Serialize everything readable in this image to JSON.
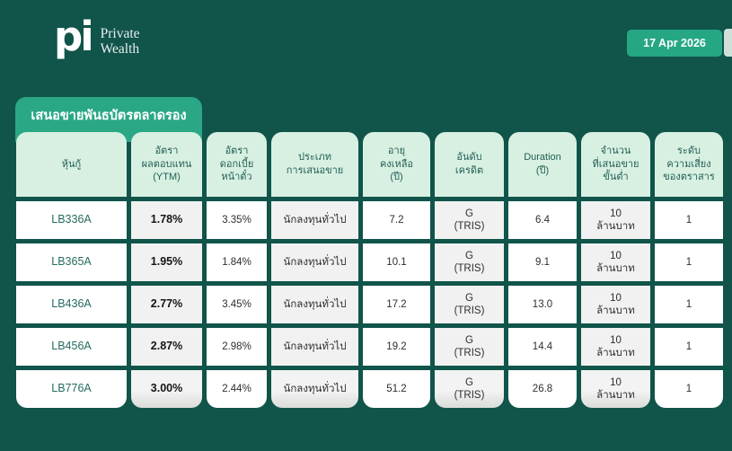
{
  "header": {
    "logo_mark": "pi",
    "logo_line1": "Private",
    "logo_line2": "Wealth",
    "date": "17 Apr 2026"
  },
  "tab_title": "เสนอขายพันธบัตรตลาดรอง",
  "table": {
    "columns": [
      "หุ้นกู้",
      "อัตรา\nผลตอบแทน\n(YTM)",
      "อัตรา\nดอกเบี้ย\nหน้าตั๋ว",
      "ประเภท\nการเสนอขาย",
      "อายุ\nคงเหลือ\n(ปี)",
      "อันดับ\nเครดิต",
      "Duration\n(ปี)",
      "จำนวน\nที่เสนอขาย\nขั้นต่ำ",
      "ระดับ\nความเสี่ยง\nของตราสาร"
    ],
    "rows": [
      [
        "LB336A",
        "1.78%",
        "3.35%",
        "นักลงทุนทั่วไป",
        "7.2",
        "G\n(TRIS)",
        "6.4",
        "10\nล้านบาท",
        "1"
      ],
      [
        "LB365A",
        "1.95%",
        "1.84%",
        "นักลงทุนทั่วไป",
        "10.1",
        "G\n(TRIS)",
        "9.1",
        "10\nล้านบาท",
        "1"
      ],
      [
        "LB436A",
        "2.77%",
        "3.45%",
        "นักลงทุนทั่วไป",
        "17.2",
        "G\n(TRIS)",
        "13.0",
        "10\nล้านบาท",
        "1"
      ],
      [
        "LB456A",
        "2.87%",
        "2.98%",
        "นักลงทุนทั่วไป",
        "19.2",
        "G\n(TRIS)",
        "14.4",
        "10\nล้านบาท",
        "1"
      ],
      [
        "LB776A",
        "3.00%",
        "2.44%",
        "นักลงทุนทั่วไป",
        "51.2",
        "G\n(TRIS)",
        "26.8",
        "10\nล้านบาท",
        "1"
      ]
    ]
  },
  "colors": {
    "background": "#10544A",
    "accent_green": "#2AA886",
    "badge_green": "#26A783",
    "header_mint": "#D7F0E2",
    "grey_column": "#F0F1F0",
    "header_text": "#235E54",
    "bond_text": "#256B60"
  }
}
